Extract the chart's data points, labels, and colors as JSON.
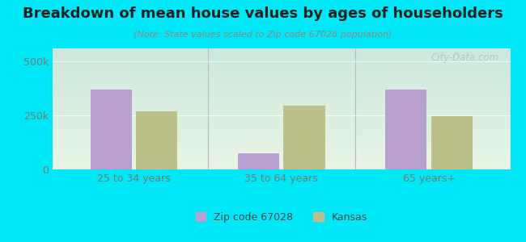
{
  "title": "Breakdown of mean house values by ages of householders",
  "subtitle": "(Note: State values scaled to Zip code 67028 population)",
  "categories": [
    "25 to 34 years",
    "35 to 64 years",
    "65 years+"
  ],
  "zip_values": [
    370000,
    75000,
    370000
  ],
  "state_values": [
    270000,
    295000,
    248000
  ],
  "zip_color": "#b8a0d0",
  "state_color": "#bcc08a",
  "background_outer": "#00e8f8",
  "plot_bg_top": "#cce8dd",
  "plot_bg_bottom": "#e8f5e4",
  "yticks": [
    0,
    250000,
    500000
  ],
  "ytick_labels": [
    "0",
    "250k",
    "500k"
  ],
  "ylim": [
    0,
    560000
  ],
  "legend_zip_label": "Zip code 67028",
  "legend_state_label": "Kansas",
  "watermark": "City-Data.com",
  "title_fontsize": 13,
  "subtitle_fontsize": 8,
  "tick_fontsize": 9,
  "legend_fontsize": 9
}
